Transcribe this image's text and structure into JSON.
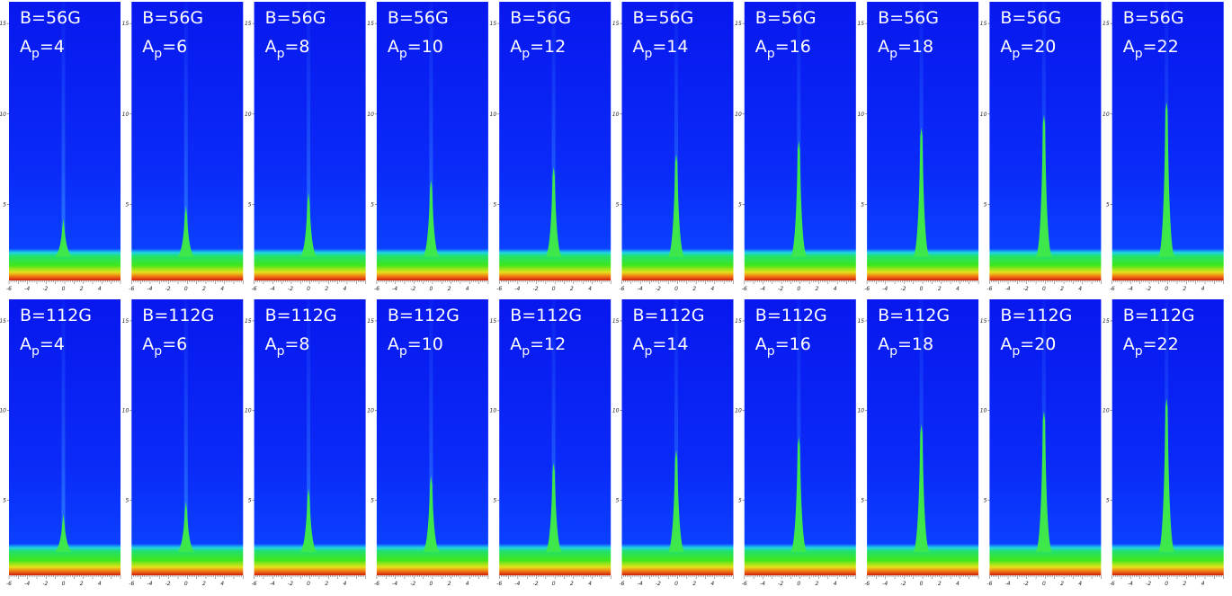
{
  "rows": [
    {
      "field": "B=56G",
      "panels": [
        {
          "a": "A",
          "sub": "p",
          "val": "=4"
        },
        {
          "a": "A",
          "sub": "p",
          "val": "=6"
        },
        {
          "a": "A",
          "sub": "p",
          "val": "=8"
        },
        {
          "a": "A",
          "sub": "p",
          "val": "=10"
        },
        {
          "a": "A",
          "sub": "p",
          "val": "=12"
        },
        {
          "a": "A",
          "sub": "p",
          "val": "=14"
        },
        {
          "a": "A",
          "sub": "p",
          "val": "=16"
        },
        {
          "a": "A",
          "sub": "p",
          "val": "=18"
        },
        {
          "a": "A",
          "sub": "p",
          "val": "=20"
        },
        {
          "a": "A",
          "sub": "p",
          "val": "=22"
        }
      ]
    },
    {
      "field": "B=112G",
      "panels": [
        {
          "a": "A",
          "sub": "p",
          "val": "=4"
        },
        {
          "a": "A",
          "sub": "p",
          "val": "=6"
        },
        {
          "a": "A",
          "sub": "p",
          "val": "=8"
        },
        {
          "a": "A",
          "sub": "p",
          "val": "=10"
        },
        {
          "a": "A",
          "sub": "p",
          "val": "=12"
        },
        {
          "a": "A",
          "sub": "p",
          "val": "=14"
        },
        {
          "a": "A",
          "sub": "p",
          "val": "=16"
        },
        {
          "a": "A",
          "sub": "p",
          "val": "=18"
        },
        {
          "a": "A",
          "sub": "p",
          "val": "=20"
        },
        {
          "a": "A",
          "sub": "p",
          "val": "=22"
        }
      ]
    }
  ],
  "y_ticks": [
    "5",
    "10",
    "15"
  ],
  "x_ticks": [
    "-6",
    "-4",
    "-2",
    "0",
    "2",
    "4"
  ]
}
